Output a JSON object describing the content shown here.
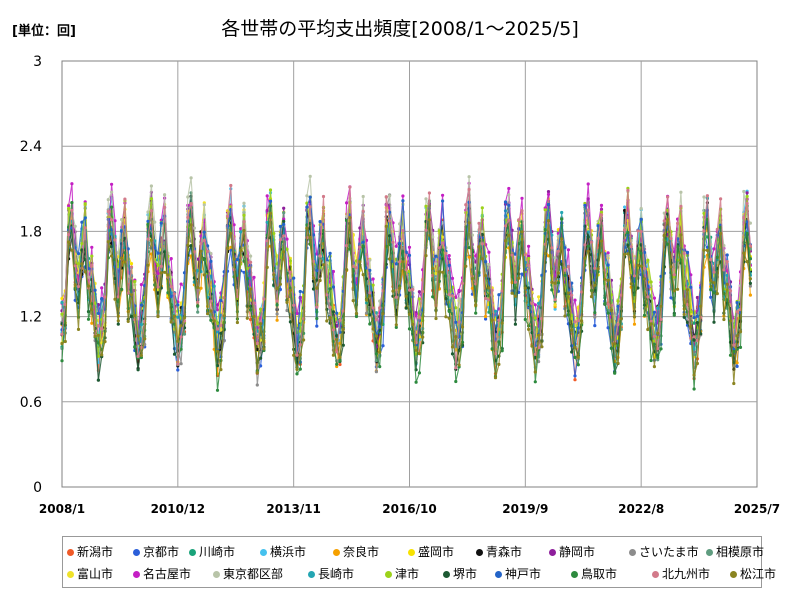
{
  "chart_data": {
    "type": "line",
    "title": "各世帯の平均支出頻度[2008/1～2025/5]",
    "unit_label": "[単位：回]",
    "xlabel": "",
    "ylabel": "",
    "ylim": [
      0,
      3
    ],
    "y_ticks": [
      "0",
      "0.6",
      "1.2",
      "1.8",
      "2.4",
      "3"
    ],
    "x_range": [
      "2008/1",
      "2025/7"
    ],
    "x_ticks": [
      "2008/1",
      "2010/12",
      "2013/11",
      "2016/10",
      "2019/9",
      "2022/8",
      "2025/7"
    ],
    "grid": true,
    "legend_position": "bottom",
    "series": [
      {
        "name": "新潟市",
        "color": "#f05a28"
      },
      {
        "name": "京都市",
        "color": "#2b5fd9"
      },
      {
        "name": "川崎市",
        "color": "#1aa37a"
      },
      {
        "name": "横浜市",
        "color": "#45c1ee"
      },
      {
        "name": "奈良市",
        "color": "#f5a000"
      },
      {
        "name": "盛岡市",
        "color": "#f7e200"
      },
      {
        "name": "青森市",
        "color": "#111111"
      },
      {
        "name": "静岡市",
        "color": "#8e1f9c"
      },
      {
        "name": "さいたま市",
        "color": "#8c8c8c"
      },
      {
        "name": "相模原市",
        "color": "#5f9c7f"
      },
      {
        "name": "富山市",
        "color": "#efe22a"
      },
      {
        "name": "名古屋市",
        "color": "#c41fc4"
      },
      {
        "name": "東京都区部",
        "color": "#b8c4a8"
      },
      {
        "name": "長崎市",
        "color": "#24a6b3"
      },
      {
        "name": "津市",
        "color": "#9cd21a"
      },
      {
        "name": "堺市",
        "color": "#1d5a33"
      },
      {
        "name": "神戸市",
        "color": "#2464c8"
      },
      {
        "name": "鳥取市",
        "color": "#2d8a3e"
      },
      {
        "name": "北九州市",
        "color": "#d27a8a"
      },
      {
        "name": "松江市",
        "color": "#8a8420"
      }
    ]
  }
}
